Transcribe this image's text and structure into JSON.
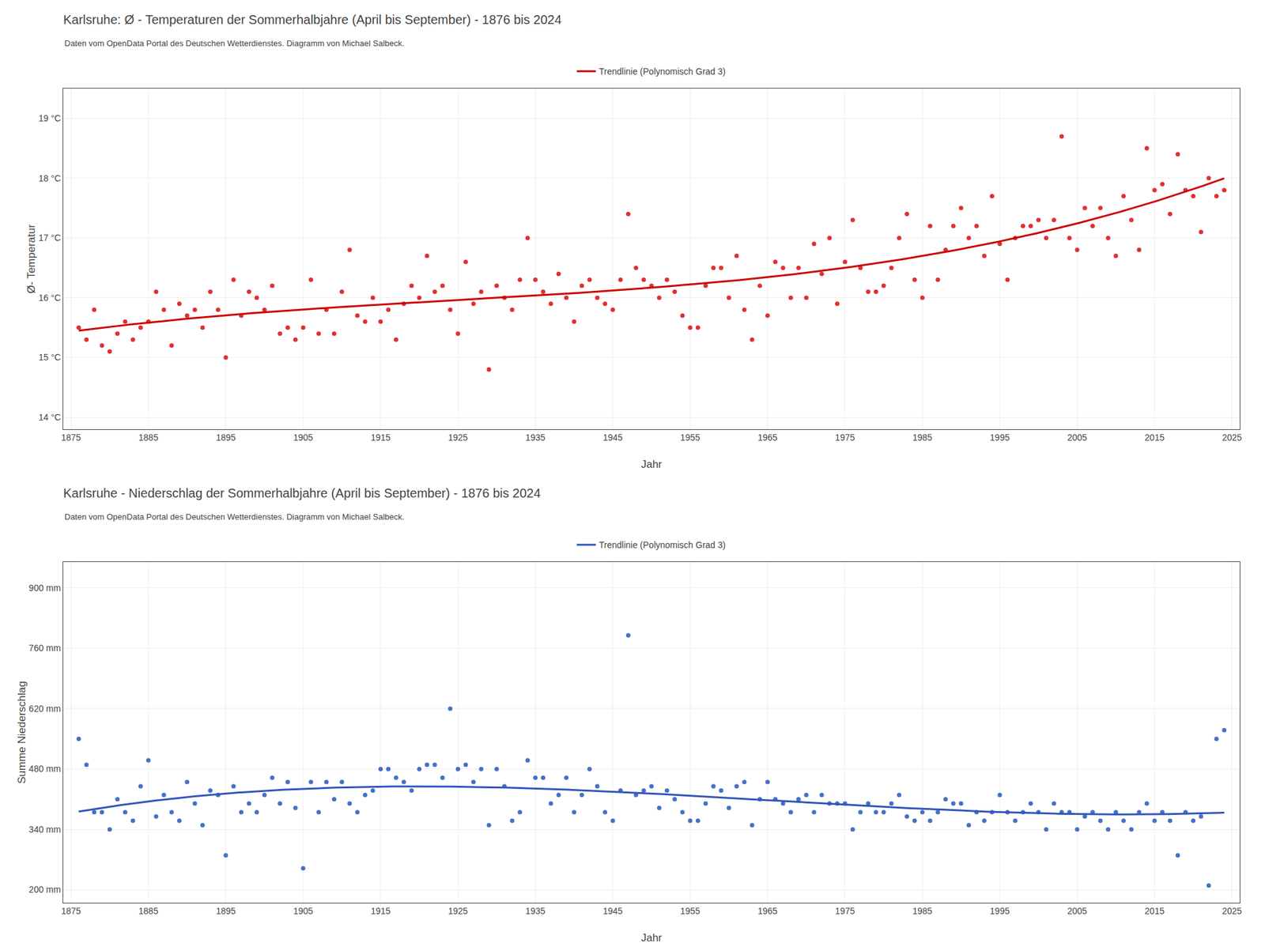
{
  "chart_data": [
    {
      "type": "scatter",
      "title": "Karlsruhe: Ø - Temperaturen der Sommerhalbjahre (April bis September) - 1876 bis 2024",
      "subtitle": "Daten vom OpenData Portal des Deutschen Wetterdienstes. Diagramm von Michael Salbeck.",
      "xlabel": "Jahr",
      "ylabel": "Ø- Temperatur",
      "x": [
        1876,
        1877,
        1878,
        1879,
        1880,
        1881,
        1882,
        1883,
        1884,
        1885,
        1886,
        1887,
        1888,
        1889,
        1890,
        1891,
        1892,
        1893,
        1894,
        1895,
        1896,
        1897,
        1898,
        1899,
        1900,
        1901,
        1902,
        1903,
        1904,
        1905,
        1906,
        1907,
        1908,
        1909,
        1910,
        1911,
        1912,
        1913,
        1914,
        1915,
        1916,
        1917,
        1918,
        1919,
        1920,
        1921,
        1922,
        1923,
        1924,
        1925,
        1926,
        1927,
        1928,
        1929,
        1930,
        1931,
        1932,
        1933,
        1934,
        1935,
        1936,
        1937,
        1938,
        1939,
        1940,
        1941,
        1942,
        1943,
        1944,
        1945,
        1946,
        1947,
        1948,
        1949,
        1950,
        1951,
        1952,
        1953,
        1954,
        1955,
        1956,
        1957,
        1958,
        1959,
        1960,
        1961,
        1962,
        1963,
        1964,
        1965,
        1966,
        1967,
        1968,
        1969,
        1970,
        1971,
        1972,
        1973,
        1974,
        1975,
        1976,
        1977,
        1978,
        1979,
        1980,
        1981,
        1982,
        1983,
        1984,
        1985,
        1986,
        1987,
        1988,
        1989,
        1990,
        1991,
        1992,
        1993,
        1994,
        1995,
        1996,
        1997,
        1998,
        1999,
        2000,
        2001,
        2002,
        2003,
        2004,
        2005,
        2006,
        2007,
        2008,
        2009,
        2010,
        2011,
        2012,
        2013,
        2014,
        2015,
        2016,
        2017,
        2018,
        2019,
        2020,
        2021,
        2022,
        2023,
        2024
      ],
      "series": [
        {
          "type": "scatter",
          "color": "#e03030",
          "values": [
            15.5,
            15.3,
            15.8,
            15.2,
            15.1,
            15.4,
            15.6,
            15.3,
            15.5,
            15.6,
            16.1,
            15.8,
            15.2,
            15.9,
            15.7,
            15.8,
            15.5,
            16.1,
            15.8,
            15.0,
            16.3,
            15.7,
            16.1,
            16.0,
            15.8,
            16.2,
            15.4,
            15.5,
            15.3,
            15.5,
            16.3,
            15.4,
            15.8,
            15.4,
            16.1,
            16.8,
            15.7,
            15.6,
            16.0,
            15.6,
            15.8,
            15.3,
            15.9,
            16.2,
            16.0,
            16.7,
            16.1,
            16.2,
            15.8,
            15.4,
            16.6,
            15.9,
            16.1,
            14.8,
            16.2,
            16.0,
            15.8,
            16.3,
            17.0,
            16.3,
            16.1,
            15.9,
            16.4,
            16.0,
            15.6,
            16.2,
            16.3,
            16.0,
            15.9,
            15.8,
            16.3,
            17.4,
            16.5,
            16.3,
            16.2,
            16.0,
            16.3,
            16.1,
            15.7,
            15.5,
            15.5,
            16.2,
            16.5,
            16.5,
            16.0,
            16.7,
            15.8,
            15.3,
            16.2,
            15.7,
            16.6,
            16.5,
            16.0,
            16.5,
            16.0,
            16.9,
            16.4,
            17.0,
            15.9,
            16.6,
            17.3,
            16.5,
            16.1,
            16.1,
            16.2,
            16.5,
            17.0,
            17.4,
            16.3,
            16.0,
            17.2,
            16.3,
            16.8,
            17.2,
            17.5,
            17.0,
            17.2,
            16.7,
            17.7,
            16.9,
            16.3,
            17.0,
            17.2,
            17.2,
            17.3,
            17.0,
            17.3,
            18.7,
            17.0,
            16.8,
            17.5,
            17.2,
            17.5,
            17.0,
            16.7,
            17.7,
            17.3,
            16.8,
            18.5,
            17.8,
            17.9,
            17.4,
            18.4,
            17.8,
            17.7,
            17.1,
            18.0,
            17.7,
            17.8
          ]
        },
        {
          "type": "trend",
          "name": "Trendlinie (Polynomisch Grad 3)",
          "color": "#cc0000",
          "line_style": "solid"
        }
      ],
      "xlim": [
        1874,
        2026
      ],
      "xticks": [
        1875,
        1885,
        1895,
        1905,
        1915,
        1925,
        1935,
        1945,
        1955,
        1965,
        1975,
        1985,
        1995,
        2005,
        2015,
        2025
      ],
      "ylim": [
        13.8,
        19.5
      ],
      "yticks": [
        {
          "value": 14,
          "label": "14 °C"
        },
        {
          "value": 15,
          "label": "15 °C"
        },
        {
          "value": 16,
          "label": "16 °C"
        },
        {
          "value": 17,
          "label": "17 °C"
        },
        {
          "value": 18,
          "label": "18 °C"
        },
        {
          "value": 19,
          "label": "19 °C"
        }
      ],
      "grid": true,
      "legend": "top"
    },
    {
      "type": "scatter",
      "title": "Karlsruhe - Niederschlag der Sommerhalbjahre (April bis September) - 1876 bis 2024",
      "subtitle": "Daten vom OpenData Portal des Deutschen Wetterdienstes. Diagramm von Michael Salbeck.",
      "xlabel": "Jahr",
      "ylabel": "Summe Niederschlag",
      "x": [
        1876,
        1877,
        1878,
        1879,
        1880,
        1881,
        1882,
        1883,
        1884,
        1885,
        1886,
        1887,
        1888,
        1889,
        1890,
        1891,
        1892,
        1893,
        1894,
        1895,
        1896,
        1897,
        1898,
        1899,
        1900,
        1901,
        1902,
        1903,
        1904,
        1905,
        1906,
        1907,
        1908,
        1909,
        1910,
        1911,
        1912,
        1913,
        1914,
        1915,
        1916,
        1917,
        1918,
        1919,
        1920,
        1921,
        1922,
        1923,
        1924,
        1925,
        1926,
        1927,
        1928,
        1929,
        1930,
        1931,
        1932,
        1933,
        1934,
        1935,
        1936,
        1937,
        1938,
        1939,
        1940,
        1941,
        1942,
        1943,
        1944,
        1945,
        1946,
        1947,
        1948,
        1949,
        1950,
        1951,
        1952,
        1953,
        1954,
        1955,
        1956,
        1957,
        1958,
        1959,
        1960,
        1961,
        1962,
        1963,
        1964,
        1965,
        1966,
        1967,
        1968,
        1969,
        1970,
        1971,
        1972,
        1973,
        1974,
        1975,
        1976,
        1977,
        1978,
        1979,
        1980,
        1981,
        1982,
        1983,
        1984,
        1985,
        1986,
        1987,
        1988,
        1989,
        1990,
        1991,
        1992,
        1993,
        1994,
        1995,
        1996,
        1997,
        1998,
        1999,
        2000,
        2001,
        2002,
        2003,
        2004,
        2005,
        2006,
        2007,
        2008,
        2009,
        2010,
        2011,
        2012,
        2013,
        2014,
        2015,
        2016,
        2017,
        2018,
        2019,
        2020,
        2021,
        2022,
        2023,
        2024
      ],
      "series": [
        {
          "type": "scatter",
          "color": "#4472c4",
          "values": [
            550,
            490,
            380,
            380,
            340,
            410,
            380,
            360,
            440,
            500,
            370,
            420,
            380,
            360,
            450,
            400,
            350,
            430,
            420,
            280,
            440,
            380,
            400,
            380,
            420,
            460,
            400,
            450,
            390,
            250,
            450,
            380,
            450,
            410,
            450,
            400,
            380,
            420,
            430,
            480,
            480,
            460,
            450,
            430,
            480,
            490,
            490,
            460,
            620,
            480,
            490,
            450,
            480,
            350,
            480,
            440,
            360,
            380,
            500,
            460,
            460,
            400,
            420,
            460,
            380,
            420,
            480,
            440,
            380,
            360,
            430,
            790,
            420,
            430,
            440,
            390,
            430,
            410,
            380,
            360,
            360,
            400,
            440,
            430,
            390,
            440,
            450,
            350,
            410,
            450,
            410,
            400,
            380,
            410,
            420,
            380,
            420,
            400,
            400,
            400,
            340,
            380,
            400,
            380,
            380,
            400,
            420,
            370,
            360,
            380,
            360,
            380,
            410,
            400,
            400,
            350,
            380,
            360,
            380,
            420,
            380,
            360,
            380,
            400,
            380,
            340,
            400,
            380,
            380,
            340,
            370,
            380,
            360,
            340,
            380,
            360,
            340,
            380,
            400,
            360,
            380,
            360,
            280,
            380,
            360,
            370,
            210,
            550,
            570
          ]
        },
        {
          "type": "trend",
          "name": "Trendlinie (Polynomisch Grad 3)",
          "color": "#3355bb",
          "line_style": "solid"
        }
      ],
      "xlim": [
        1874,
        2026
      ],
      "xticks": [
        1875,
        1885,
        1895,
        1905,
        1915,
        1925,
        1935,
        1945,
        1955,
        1965,
        1975,
        1985,
        1995,
        2005,
        2015,
        2025
      ],
      "ylim": [
        170,
        960
      ],
      "yticks": [
        {
          "value": 200,
          "label": "200 mm"
        },
        {
          "value": 340,
          "label": "340 mm"
        },
        {
          "value": 480,
          "label": "480 mm"
        },
        {
          "value": 620,
          "label": "620 mm"
        },
        {
          "value": 760,
          "label": "760 mm"
        },
        {
          "value": 900,
          "label": "900 mm"
        }
      ],
      "grid": true,
      "legend": "top"
    }
  ]
}
